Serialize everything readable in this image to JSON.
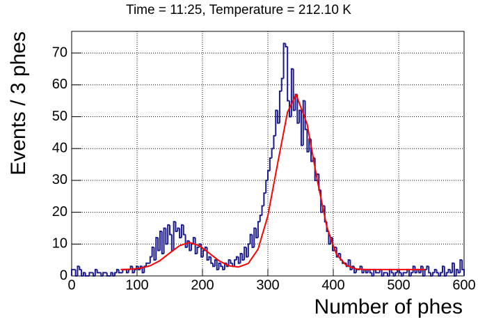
{
  "chart_data": {
    "type": "histogram",
    "title": "Time = 11:25, Temperature = 212.10 K",
    "xlabel": "Number of phes",
    "ylabel": "Events / 3 phes",
    "color": "#1a1a8c",
    "bins": [
      0,
      3,
      6,
      9,
      12,
      15,
      18,
      21,
      24,
      27,
      30,
      33,
      36,
      39,
      42,
      45,
      48,
      51,
      54,
      57,
      60,
      63,
      66,
      69,
      72,
      75,
      78,
      81,
      84,
      87,
      90,
      93,
      96,
      99,
      102,
      105,
      108,
      111,
      114,
      117,
      120,
      123,
      126,
      129,
      132,
      135,
      138,
      141,
      144,
      147,
      150,
      153,
      156,
      159,
      162,
      165,
      168,
      171,
      174,
      177,
      180,
      183,
      186,
      189,
      192,
      195,
      198,
      201,
      204,
      207,
      210,
      213,
      216,
      219,
      222,
      225,
      228,
      231,
      234,
      237,
      240,
      243,
      246,
      249,
      252,
      255,
      258,
      261,
      264,
      267,
      270,
      273,
      276,
      279,
      282,
      285,
      288,
      291,
      294,
      297,
      300,
      303,
      306,
      309,
      312,
      315,
      318,
      321,
      324,
      327,
      330,
      333,
      336,
      339,
      342,
      345,
      348,
      351,
      354,
      357,
      360,
      363,
      366,
      369,
      372,
      375,
      378,
      381,
      384,
      387,
      390,
      393,
      396,
      399,
      402,
      405,
      408,
      411,
      414,
      417,
      420,
      423,
      426,
      429,
      432,
      435,
      438,
      441,
      444,
      447,
      450,
      453,
      456,
      459,
      462,
      465,
      468,
      471,
      474,
      477,
      480,
      483,
      486,
      489,
      492,
      495,
      498,
      501,
      504,
      507,
      510,
      513,
      516,
      519,
      522,
      525,
      528,
      531,
      534,
      537,
      540,
      543,
      546,
      549,
      552,
      555,
      558,
      561,
      564,
      567,
      570,
      573,
      576,
      579,
      582,
      585,
      588,
      591,
      594,
      597,
      600
    ],
    "counts": [
      2,
      2,
      0,
      3,
      2,
      0,
      1,
      0,
      0,
      1,
      1,
      0,
      2,
      1,
      1,
      0,
      1,
      1,
      0,
      0,
      1,
      0,
      1,
      2,
      1,
      1,
      2,
      2,
      1,
      2,
      3,
      1,
      2,
      3,
      2,
      3,
      1,
      3,
      4,
      4,
      6,
      9,
      5,
      12,
      8,
      14,
      7,
      15,
      10,
      16,
      13,
      8,
      17,
      14,
      15,
      12,
      16,
      13,
      9,
      11,
      8,
      10,
      12,
      7,
      9,
      10,
      6,
      8,
      9,
      5,
      6,
      4,
      3,
      5,
      2,
      4,
      3,
      2,
      4,
      3,
      5,
      4,
      3,
      5,
      6,
      4,
      7,
      5,
      9,
      6,
      10,
      13,
      9,
      15,
      12,
      17,
      19,
      22,
      26,
      30,
      33,
      37,
      40,
      44,
      52,
      48,
      58,
      62,
      73,
      72,
      55,
      50,
      65,
      52,
      57,
      48,
      52,
      41,
      55,
      46,
      39,
      43,
      36,
      37,
      30,
      32,
      27,
      20,
      22,
      17,
      14,
      10,
      12,
      8,
      9,
      6,
      7,
      5,
      4,
      4,
      3,
      5,
      2,
      3,
      1,
      2,
      2,
      3,
      1,
      2,
      1,
      2,
      1,
      0,
      2,
      1,
      1,
      2,
      0,
      1,
      1,
      0,
      2,
      1,
      0,
      1,
      2,
      1,
      0,
      1,
      1,
      2,
      0,
      1,
      3,
      1,
      2,
      1,
      3,
      0,
      2,
      3,
      1,
      0,
      1,
      2,
      1,
      0,
      1,
      3,
      0,
      1,
      2,
      1,
      4,
      0,
      2,
      1,
      5,
      2
    ],
    "fit": {
      "color": "#ff0000",
      "x": [
        75,
        90,
        105,
        120,
        135,
        150,
        165,
        180,
        195,
        210,
        225,
        240,
        255,
        270,
        285,
        300,
        315,
        330,
        343,
        360,
        375,
        390,
        405,
        420,
        435,
        450,
        480,
        510,
        540
      ],
      "values": [
        2.0,
        2.1,
        2.4,
        3.2,
        4.8,
        7.2,
        9.5,
        10.5,
        9.5,
        7.2,
        4.8,
        3.2,
        2.8,
        3.9,
        8.4,
        18.9,
        35.4,
        51.4,
        57,
        47.7,
        30.6,
        15.5,
        6.7,
        3.3,
        2.2,
        2.0,
        2.0,
        2.0,
        2.0
      ]
    },
    "xlim": [
      0,
      600
    ],
    "xticks": [
      0,
      100,
      200,
      300,
      400,
      500,
      600
    ],
    "ylim": [
      0,
      76.8
    ],
    "yticks": [
      0,
      10,
      20,
      30,
      40,
      50,
      60,
      70
    ],
    "grid": true
  }
}
